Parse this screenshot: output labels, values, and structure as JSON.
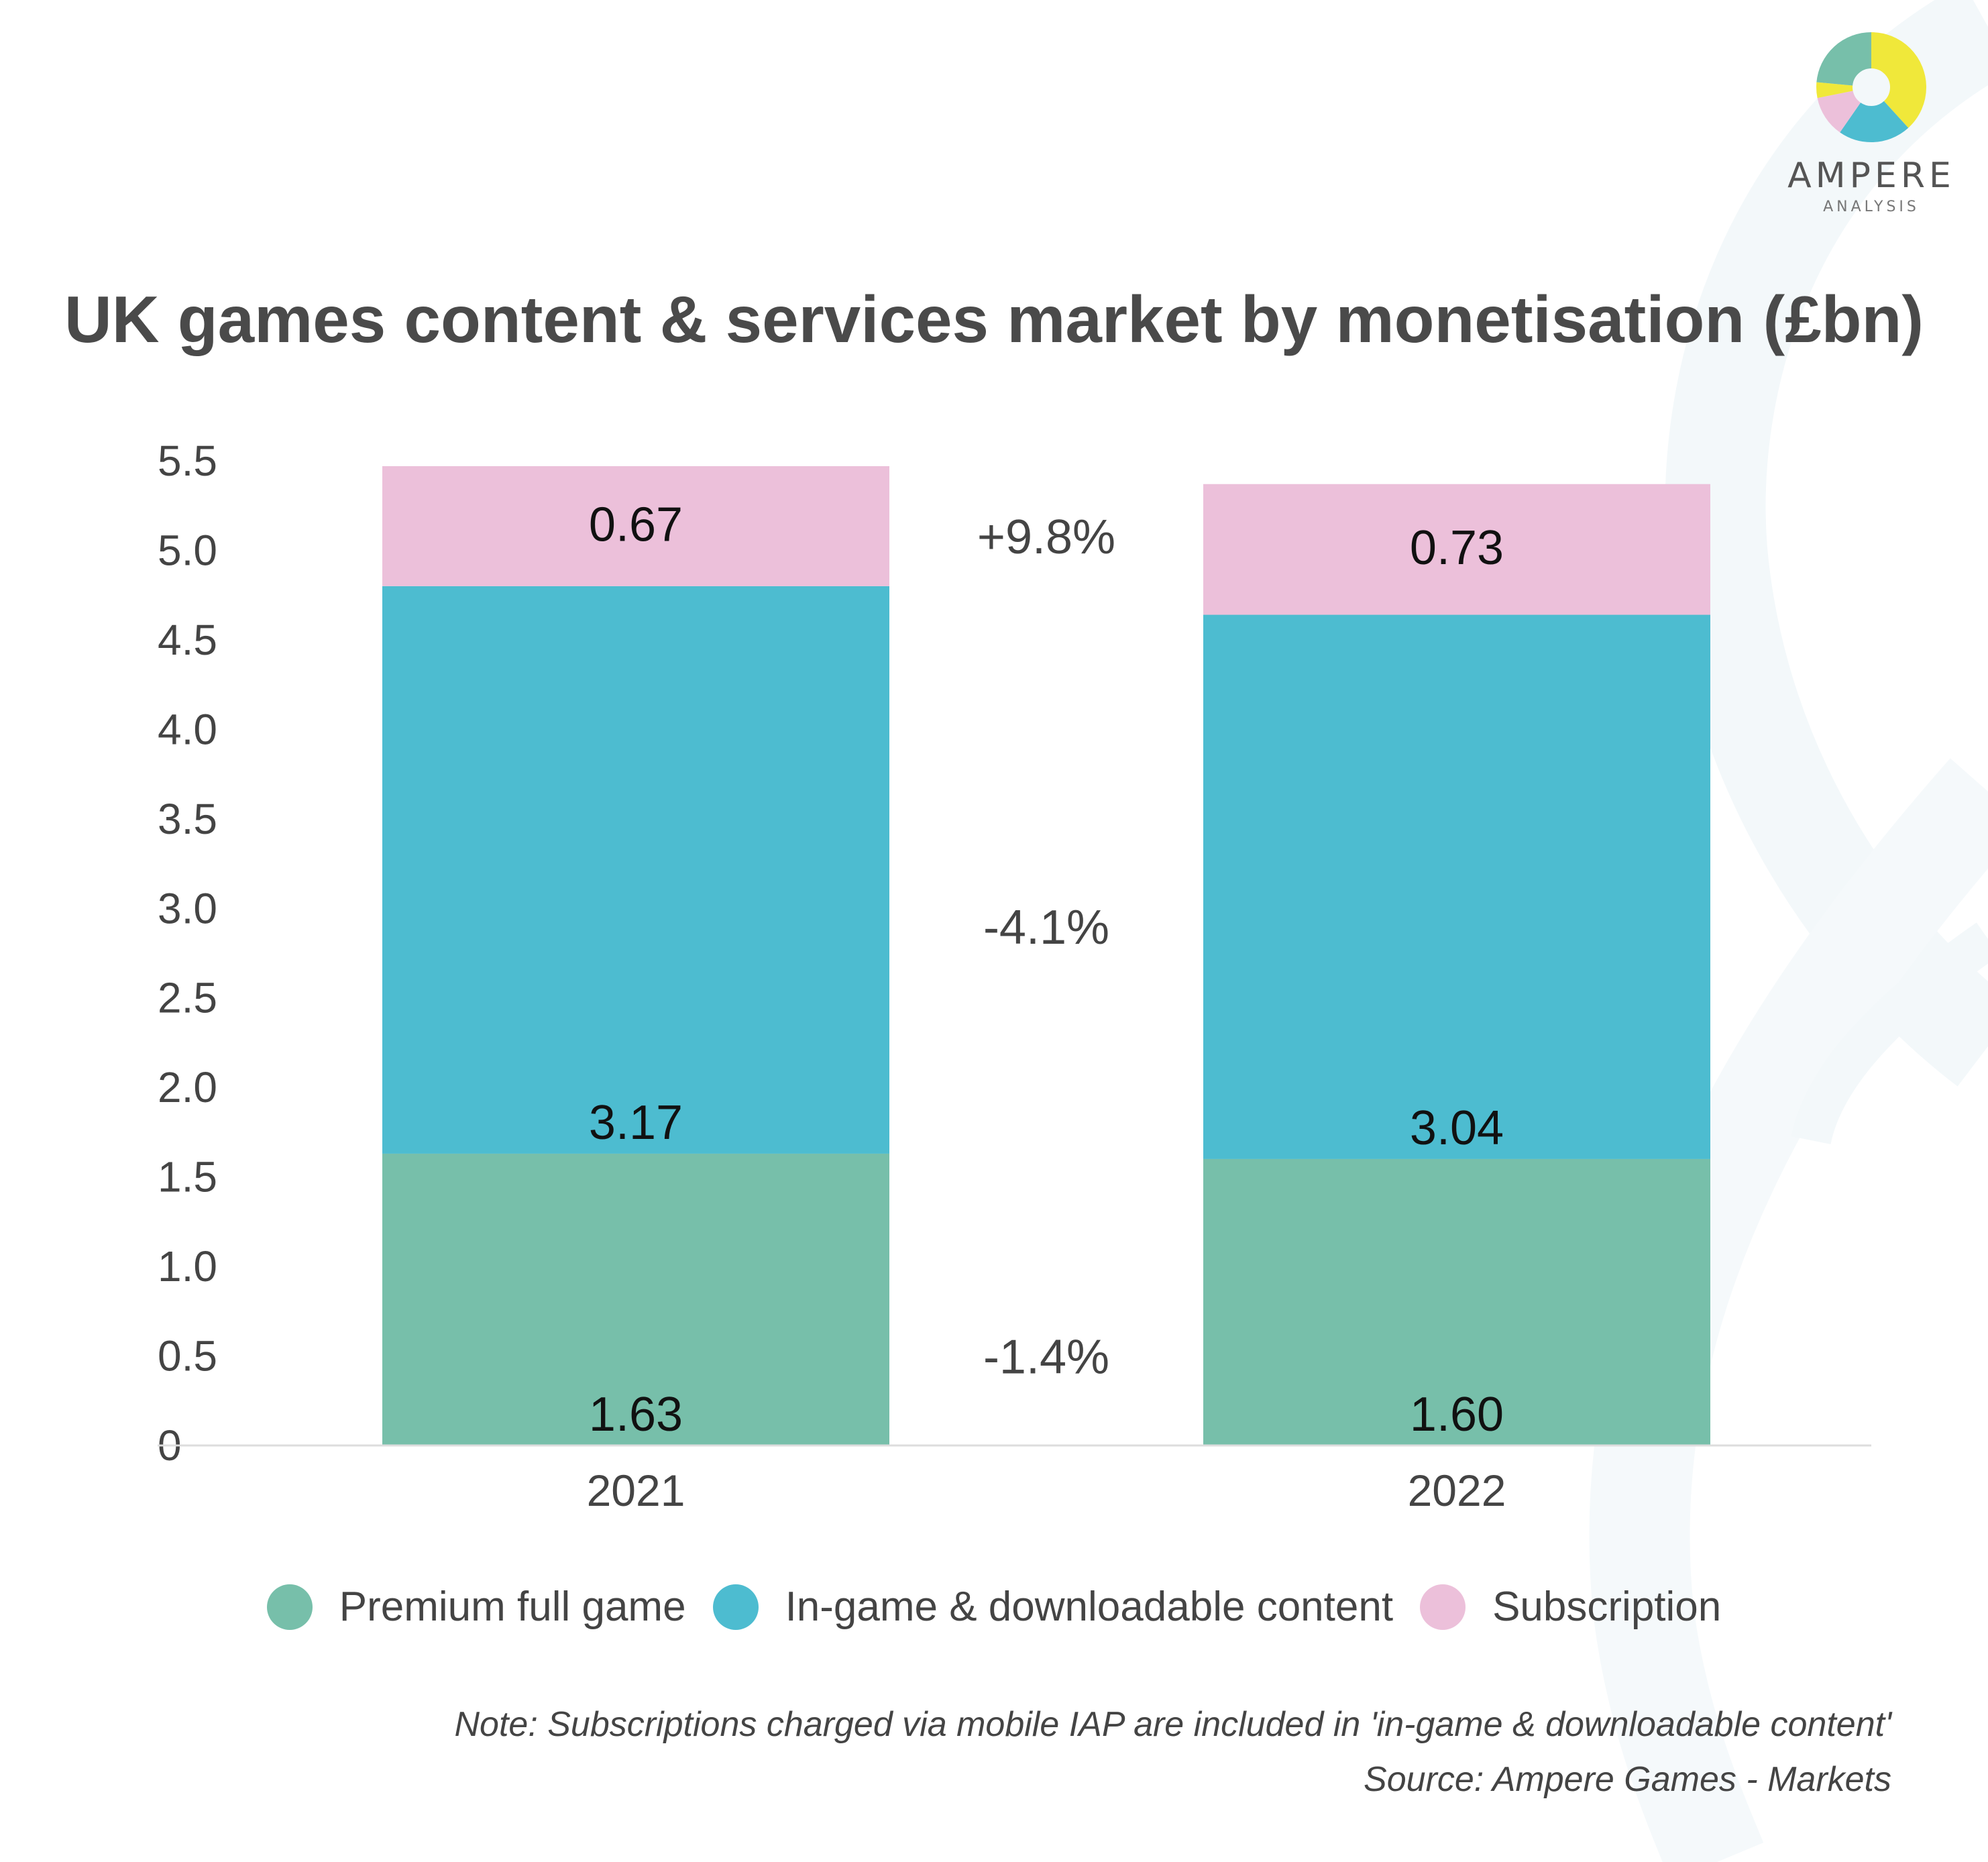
{
  "title": "UK games content & services market by monetisation (£bn)",
  "logo": {
    "name": "AMPERE",
    "subtitle": "ANALYSIS"
  },
  "note": "Note: Subscriptions charged via mobile IAP are included in 'in-game & downloadable content'",
  "source": "Source: Ampere Games - Markets",
  "colors": {
    "premium": "#77bfaa",
    "ingame": "#4dbcd0",
    "subscription": "#ecc0da",
    "axis": "#dddddd",
    "label": "#111111",
    "tick": "#444444"
  },
  "legend": [
    {
      "label": "Premium full game",
      "color": "#77bfaa"
    },
    {
      "label": "In-game & downloadable content",
      "color": "#4dbcd0"
    },
    {
      "label": "Subscription",
      "color": "#ecc0da"
    }
  ],
  "chart_data": {
    "type": "bar",
    "stacked": true,
    "title": "UK games content & services market by monetisation (£bn)",
    "categories": [
      "2021",
      "2022"
    ],
    "series": [
      {
        "name": "Premium full game",
        "values": [
          1.63,
          1.6
        ],
        "labels": [
          "1.63",
          "1.60"
        ],
        "color": "#77bfaa"
      },
      {
        "name": "In-game & downloadable content",
        "values": [
          3.17,
          3.04
        ],
        "labels": [
          "3.17",
          "3.04"
        ],
        "color": "#4dbcd0"
      },
      {
        "name": "Subscription",
        "values": [
          0.67,
          0.73
        ],
        "labels": [
          "0.67",
          "0.73"
        ],
        "color": "#ecc0da"
      }
    ],
    "growth_labels": [
      "-1.4%",
      "-4.1%",
      "+9.8%"
    ],
    "ylim": [
      0,
      5.5
    ],
    "yticks": [
      "0",
      "0.5",
      "1.0",
      "1.5",
      "2.0",
      "2.5",
      "3.0",
      "3.5",
      "4.0",
      "4.5",
      "5.0",
      "5.5"
    ],
    "grid": false,
    "legend_position": "bottom",
    "xlabel": "",
    "ylabel": ""
  }
}
